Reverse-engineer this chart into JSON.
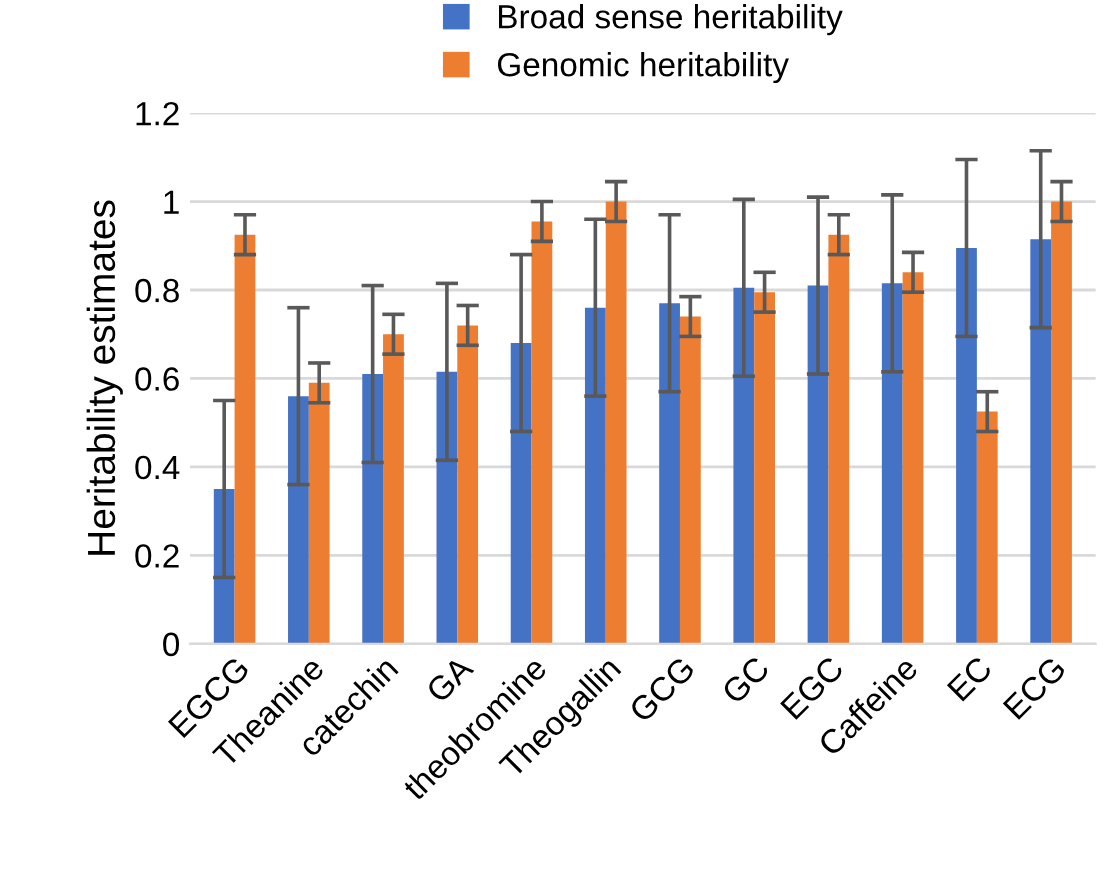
{
  "chart_data": {
    "type": "bar",
    "ylabel": "Heritability estimates",
    "categories": [
      "EGCG",
      "Theanine",
      "catechin",
      "GA",
      "theobromine",
      "Theogallin",
      "GCG",
      "GC",
      "EGC",
      "Caffeine",
      "EC",
      "ECG"
    ],
    "series": [
      {
        "name": "Broad sense heritability",
        "color": "#4472c4",
        "values": [
          0.35,
          0.56,
          0.61,
          0.615,
          0.68,
          0.76,
          0.77,
          0.805,
          0.81,
          0.815,
          0.895,
          0.915
        ],
        "errors": [
          0.2,
          0.2,
          0.2,
          0.2,
          0.2,
          0.2,
          0.2,
          0.2,
          0.2,
          0.2,
          0.2,
          0.2
        ]
      },
      {
        "name": "Genomic heritability",
        "color": "#ed7d31",
        "values": [
          0.925,
          0.59,
          0.7,
          0.72,
          0.955,
          1.0,
          0.74,
          0.795,
          0.925,
          0.84,
          0.525,
          1.0
        ],
        "errors": [
          0.045,
          0.045,
          0.045,
          0.045,
          0.045,
          0.045,
          0.045,
          0.045,
          0.045,
          0.045,
          0.045,
          0.045
        ]
      }
    ],
    "ylim": [
      0,
      1.2
    ],
    "yticks": [
      0,
      {
        "value": 0.2,
        "label": "0.2"
      },
      {
        "value": 0.4,
        "label": "0.4"
      },
      {
        "value": 0.6,
        "label": "0.6"
      },
      {
        "value": 0.8,
        "label": "0.8"
      },
      1,
      {
        "value": 1.2,
        "label": "1.2"
      }
    ],
    "grid": "y",
    "legend": "top"
  }
}
